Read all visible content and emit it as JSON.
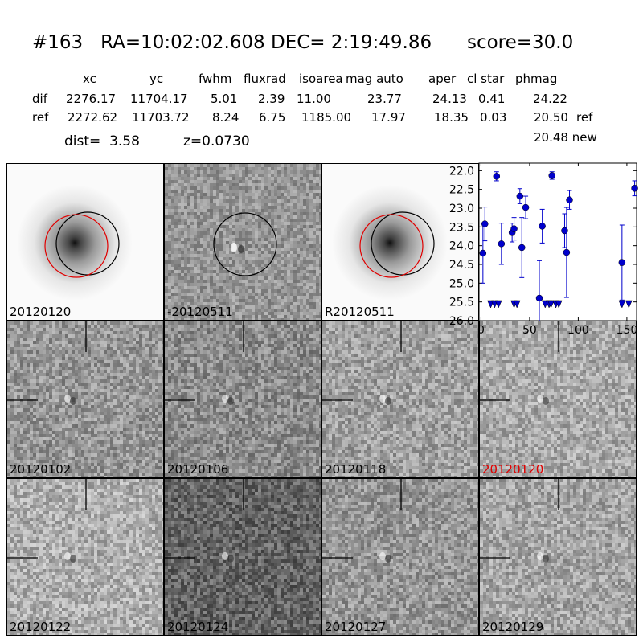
{
  "header": {
    "title": "#163   RA=10:02:02.608 DEC= 2:19:49.86      score=30.0",
    "columns": [
      "xc",
      "yc",
      "fwhm",
      "fluxrad",
      "isoarea",
      "mag auto",
      "aper",
      "cl star",
      "phmag"
    ],
    "rows": [
      {
        "label": "dif",
        "values": [
          "2276.17",
          "11704.17",
          "5.01",
          "2.39",
          "11.00",
          "23.77",
          "24.13",
          "0.41",
          "24.22"
        ],
        "suffix": ""
      },
      {
        "label": "ref",
        "values": [
          "2272.62",
          "11703.72",
          "8.24",
          "6.75",
          "1185.00",
          "17.97",
          "18.35",
          "0.03",
          "20.50"
        ],
        "suffix": "ref"
      }
    ],
    "new_mag": "20.48 new",
    "dist": "dist=  3.58",
    "z": "z=0.0730"
  },
  "top_panels": [
    {
      "label": "20120120",
      "type": "galaxy",
      "red_circle": true,
      "label_color": "#000000"
    },
    {
      "label": "-20120511",
      "type": "difference",
      "red_circle": false,
      "label_color": "#000000"
    },
    {
      "label": "R20120511",
      "type": "galaxy",
      "red_circle": true,
      "label_color": "#000000"
    }
  ],
  "epoch_panels": [
    {
      "label": "20120102",
      "label_color": "#000000",
      "shade": 150
    },
    {
      "label": "20120106",
      "label_color": "#000000",
      "shade": 140
    },
    {
      "label": "20120118",
      "label_color": "#000000",
      "shade": 160
    },
    {
      "label": "20120120",
      "label_color": "#e00000",
      "shade": 170
    },
    {
      "label": "20120122",
      "label_color": "#000000",
      "shade": 175
    },
    {
      "label": "20120124",
      "label_color": "#000000",
      "shade": 100
    },
    {
      "label": "20120127",
      "label_color": "#000000",
      "shade": 150
    },
    {
      "label": "20120129",
      "label_color": "#000000",
      "shade": 165
    }
  ],
  "chart_data": {
    "type": "scatter",
    "title": "",
    "xlabel": "",
    "ylabel": "",
    "xlim": [
      -2,
      160
    ],
    "ylim": [
      26.0,
      21.8
    ],
    "y_inverted": true,
    "x_ticks": [
      0,
      50,
      100,
      150
    ],
    "y_ticks": [
      22.0,
      22.5,
      23.0,
      23.5,
      24.0,
      24.5,
      25.0,
      25.5,
      26.0
    ],
    "color": "#0000cc",
    "points": [
      {
        "x": 2,
        "y": 24.2,
        "err": 0.8
      },
      {
        "x": 4,
        "y": 23.42,
        "err": 0.45
      },
      {
        "x": 16,
        "y": 22.15,
        "err": 0.12
      },
      {
        "x": 21,
        "y": 23.95,
        "err": 0.55
      },
      {
        "x": 32,
        "y": 23.65,
        "err": 0.25
      },
      {
        "x": 34,
        "y": 23.55,
        "err": 0.3
      },
      {
        "x": 40,
        "y": 22.68,
        "err": 0.2
      },
      {
        "x": 42,
        "y": 24.05,
        "err": 0.8
      },
      {
        "x": 46,
        "y": 22.98,
        "err": 0.3
      },
      {
        "x": 60,
        "y": 25.4,
        "err": 1.0
      },
      {
        "x": 63,
        "y": 23.48,
        "err": 0.45
      },
      {
        "x": 73,
        "y": 22.13,
        "err": 0.1
      },
      {
        "x": 86,
        "y": 23.6,
        "err": 0.45
      },
      {
        "x": 88,
        "y": 24.18,
        "err": 1.2
      },
      {
        "x": 91,
        "y": 22.78,
        "err": 0.25
      },
      {
        "x": 145,
        "y": 24.45,
        "err": 1.0
      },
      {
        "x": 158,
        "y": 22.47,
        "err": 0.2
      }
    ],
    "upper_limits": [
      {
        "x": 10,
        "y": 25.55
      },
      {
        "x": 14,
        "y": 25.55
      },
      {
        "x": 18,
        "y": 25.55
      },
      {
        "x": 34,
        "y": 25.55
      },
      {
        "x": 37,
        "y": 25.55
      },
      {
        "x": 66,
        "y": 25.55
      },
      {
        "x": 70,
        "y": 25.55
      },
      {
        "x": 72,
        "y": 25.55
      },
      {
        "x": 77,
        "y": 25.55
      },
      {
        "x": 80,
        "y": 25.55
      },
      {
        "x": 145,
        "y": 25.55
      },
      {
        "x": 152,
        "y": 25.55
      }
    ]
  }
}
